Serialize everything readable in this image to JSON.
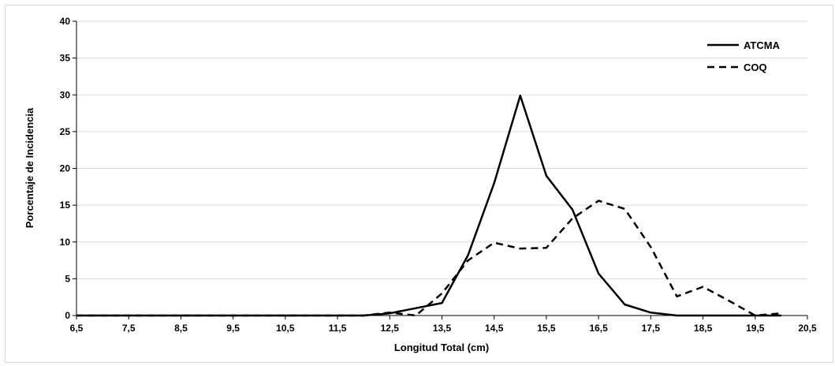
{
  "chart_data": {
    "type": "line",
    "title": "",
    "xlabel": "Longitud Total (cm)",
    "ylabel": "Porcentaje de Incidencia",
    "xlim": [
      6.5,
      20.5
    ],
    "ylim": [
      0,
      40
    ],
    "x_ticks": [
      "6,5",
      "7,5",
      "8,5",
      "9,5",
      "10,5",
      "11,5",
      "12,5",
      "13,5",
      "14,5",
      "15,5",
      "16,5",
      "17,5",
      "18,5",
      "19,5",
      "20,5"
    ],
    "y_ticks": [
      "0",
      "5",
      "10",
      "15",
      "20",
      "25",
      "30",
      "35",
      "40"
    ],
    "grid": "horizontal",
    "legend_position": "top-right",
    "x": [
      6.5,
      7,
      7.5,
      8,
      8.5,
      9,
      9.5,
      10,
      10.5,
      11,
      11.5,
      12,
      12.5,
      13,
      13.5,
      14,
      14.5,
      15,
      15.5,
      16,
      16.5,
      17,
      17.5,
      18,
      18.5,
      19,
      19.5,
      20
    ],
    "series": [
      {
        "name": "ATCMA",
        "style": "solid",
        "color": "#000000",
        "values": [
          0,
          0,
          0,
          0,
          0,
          0,
          0,
          0,
          0,
          0,
          0,
          0,
          0.3,
          1,
          1.7,
          8.2,
          18,
          29.9,
          19,
          14.4,
          5.7,
          1.5,
          0.4,
          0,
          0,
          0,
          0,
          0
        ]
      },
      {
        "name": "COQ",
        "style": "dashed",
        "color": "#000000",
        "values": [
          0,
          0,
          0,
          0,
          0,
          0,
          0,
          0,
          0,
          0,
          0,
          0,
          0.4,
          0,
          3,
          7.5,
          9.9,
          9.1,
          9.2,
          13.2,
          15.6,
          14.5,
          9.3,
          2.6,
          3.9,
          2,
          0,
          0.3
        ]
      }
    ]
  }
}
